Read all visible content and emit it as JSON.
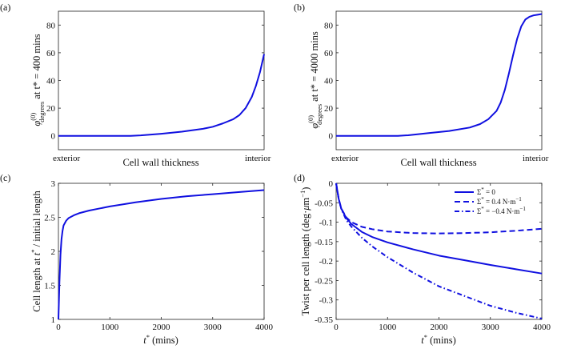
{
  "chart_data": [
    {
      "id": "a",
      "panel_label": "(a)",
      "type": "line",
      "ylabel": "φ(0)degrees at t* = 400 mins",
      "ylabel_parts": {
        "phi": "φ",
        "sup": "(0)",
        "sub": "degrees",
        "rest": " at t* = 400 mins"
      },
      "xlabel": "Cell wall thickness",
      "x_tick_labels": [
        "exterior",
        "interior"
      ],
      "xlim": [
        0,
        1
      ],
      "ylim": [
        -10,
        90
      ],
      "y_ticks": [
        0,
        20,
        40,
        60,
        80
      ],
      "series": [
        {
          "name": "phi",
          "style": "solid",
          "x": [
            0,
            0.2,
            0.35,
            0.4,
            0.5,
            0.6,
            0.7,
            0.75,
            0.8,
            0.85,
            0.88,
            0.91,
            0.94,
            0.96,
            0.98,
            1.0
          ],
          "y": [
            0,
            0,
            0,
            0.3,
            1.5,
            3,
            5,
            6.5,
            9,
            12,
            15,
            20,
            28,
            36,
            46,
            59
          ]
        }
      ]
    },
    {
      "id": "b",
      "panel_label": "(b)",
      "type": "line",
      "ylabel": "φ(0)degrees at t* = 4000 mins",
      "ylabel_parts": {
        "phi": "φ",
        "sup": "(0)",
        "sub": "degrees",
        "rest": " at t* = 4000 mins"
      },
      "xlabel": "Cell wall thickness",
      "x_tick_labels": [
        "exterior",
        "interior"
      ],
      "xlim": [
        0,
        1
      ],
      "ylim": [
        -10,
        90
      ],
      "y_ticks": [
        0,
        20,
        40,
        60,
        80
      ],
      "series": [
        {
          "name": "phi",
          "style": "solid",
          "x": [
            0,
            0.2,
            0.3,
            0.35,
            0.45,
            0.55,
            0.65,
            0.7,
            0.74,
            0.78,
            0.8,
            0.82,
            0.84,
            0.86,
            0.88,
            0.9,
            0.92,
            0.94,
            0.96,
            0.98,
            1.0
          ],
          "y": [
            0,
            0,
            0,
            0.4,
            2,
            3.5,
            6,
            8.5,
            12,
            18,
            24,
            33,
            45,
            58,
            70,
            79,
            84,
            86,
            87,
            87.5,
            88
          ]
        }
      ]
    },
    {
      "id": "c",
      "panel_label": "(c)",
      "type": "line",
      "ylabel": "Cell length at t* / initial length",
      "ylabel_parts": {
        "pre": "Cell length at ",
        "t": "t",
        "star": "*",
        "rest": " / initial length"
      },
      "xlabel": "t* (mins)",
      "xlabel_parts": {
        "t": "t",
        "star": "*",
        "rest": " (mins)"
      },
      "xlim": [
        0,
        4000
      ],
      "ylim": [
        1,
        3
      ],
      "x_ticks": [
        0,
        1000,
        2000,
        3000,
        4000
      ],
      "y_ticks": [
        1,
        1.5,
        2,
        2.5,
        3
      ],
      "series": [
        {
          "name": "length",
          "style": "solid",
          "x": [
            0,
            20,
            40,
            60,
            80,
            100,
            150,
            200,
            300,
            400,
            600,
            800,
            1000,
            1500,
            2000,
            2500,
            3000,
            3500,
            4000
          ],
          "y": [
            1,
            1.55,
            1.95,
            2.18,
            2.3,
            2.38,
            2.45,
            2.49,
            2.53,
            2.56,
            2.6,
            2.63,
            2.66,
            2.72,
            2.77,
            2.81,
            2.84,
            2.87,
            2.9
          ]
        }
      ]
    },
    {
      "id": "d",
      "panel_label": "(d)",
      "type": "line",
      "ylabel": "Twist per cell length (deg·μm−1)",
      "ylabel_parts": {
        "pre": "Twist per cell length (deg·",
        "mu": "μ",
        "post": "m",
        "sup": "−1",
        "close": ")"
      },
      "xlabel": "t* (mins)",
      "xlabel_parts": {
        "t": "t",
        "star": "*",
        "rest": " (mins)"
      },
      "xlim": [
        0,
        4000
      ],
      "ylim": [
        -0.35,
        0
      ],
      "x_ticks": [
        0,
        1000,
        2000,
        3000,
        4000
      ],
      "y_ticks": [
        0,
        -0.05,
        -0.1,
        -0.15,
        -0.2,
        -0.25,
        -0.3,
        -0.35
      ],
      "y_tick_labels": [
        "0",
        "-0.05",
        "-0.1",
        "-0.15",
        "-0.2",
        "-0.25",
        "-0.3",
        "-0.35"
      ],
      "legend_position": "top-right",
      "series": [
        {
          "name": "Σ* = 0",
          "style": "solid",
          "x": [
            0,
            50,
            100,
            200,
            300,
            500,
            700,
            1000,
            1500,
            2000,
            2500,
            3000,
            3500,
            4000
          ],
          "y": [
            0,
            -0.04,
            -0.065,
            -0.09,
            -0.105,
            -0.125,
            -0.138,
            -0.152,
            -0.17,
            -0.186,
            -0.198,
            -0.21,
            -0.221,
            -0.232
          ]
        },
        {
          "name": "Σ* = 0.4 N·m−1",
          "style": "dashed",
          "x": [
            0,
            50,
            100,
            200,
            300,
            500,
            700,
            1000,
            1500,
            2000,
            2500,
            3000,
            3500,
            4000
          ],
          "y": [
            0,
            -0.04,
            -0.065,
            -0.088,
            -0.1,
            -0.112,
            -0.118,
            -0.124,
            -0.128,
            -0.129,
            -0.128,
            -0.126,
            -0.122,
            -0.117
          ]
        },
        {
          "name": "Σ* = −0.4 N·m−1",
          "style": "dashdot",
          "x": [
            0,
            50,
            100,
            200,
            300,
            500,
            700,
            1000,
            1500,
            2000,
            2500,
            3000,
            3500,
            4000
          ],
          "y": [
            0,
            -0.04,
            -0.066,
            -0.095,
            -0.112,
            -0.14,
            -0.162,
            -0.19,
            -0.23,
            -0.265,
            -0.29,
            -0.315,
            -0.333,
            -0.348
          ]
        }
      ],
      "legend_items": [
        {
          "sigma": "Σ",
          "star": "*",
          "rest": " = 0",
          "style": "solid"
        },
        {
          "sigma": "Σ",
          "star": "*",
          "rest": " = 0.4 N·m",
          "sup": "−1",
          "style": "dashed"
        },
        {
          "sigma": "Σ",
          "star": "*",
          "rest": " = −0.4 N·m",
          "sup": "−1",
          "style": "dashdot"
        }
      ]
    }
  ],
  "colors": {
    "series": "#1010e0",
    "axis": "#222222"
  }
}
